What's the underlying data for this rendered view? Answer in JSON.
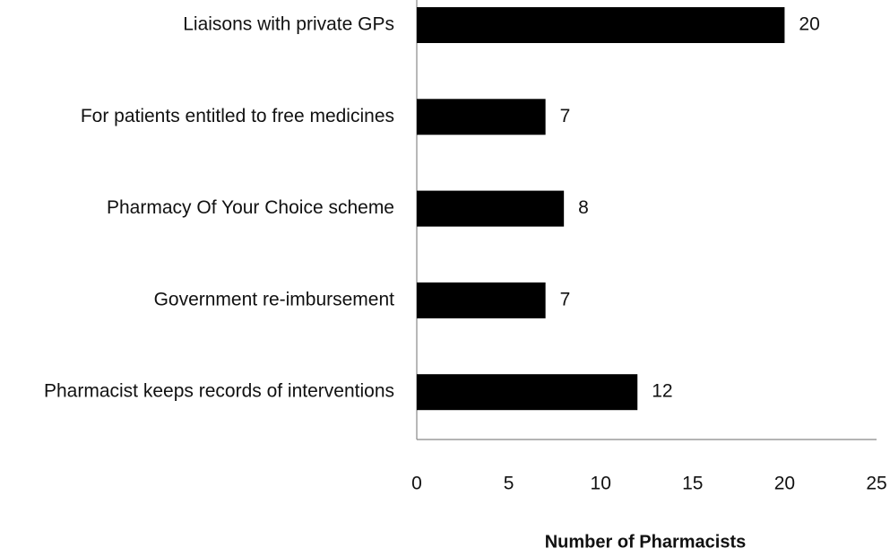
{
  "chart_data": {
    "type": "barh",
    "categories": [
      "Liaisons with private GPs",
      "For patients entitled to free medicines",
      "Pharmacy Of Your Choice scheme",
      "Government re-imbursement",
      "Pharmacist keeps records of interventions"
    ],
    "values": [
      20,
      7,
      8,
      7,
      12
    ],
    "color": "#000000",
    "xlabel": "Number of Pharmacists",
    "xlim": [
      0,
      25
    ],
    "xticks": [
      0,
      5,
      10,
      15,
      20,
      25
    ],
    "grid": false
  }
}
